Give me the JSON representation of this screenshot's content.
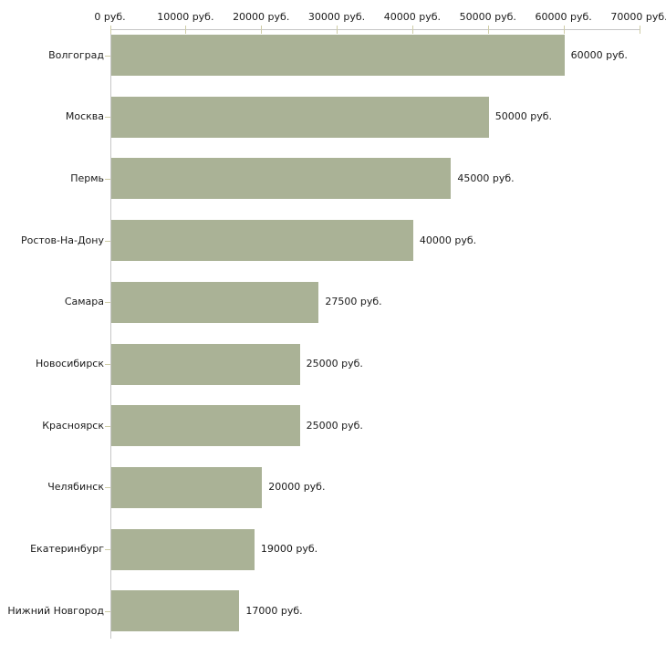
{
  "chart_data": {
    "type": "bar",
    "orientation": "horizontal",
    "title": "",
    "xlabel": "",
    "ylabel": "",
    "xlim": [
      0,
      70000
    ],
    "grid": false,
    "legend": "none",
    "unit": "руб.",
    "categories": [
      "Волгоград",
      "Москва",
      "Пермь",
      "Ростов-На-Дону",
      "Самара",
      "Новосибирск",
      "Красноярск",
      "Челябинск",
      "Екатеринбург",
      "Нижний Новгород"
    ],
    "values": [
      60000,
      50000,
      45000,
      40000,
      27500,
      25000,
      25000,
      20000,
      19000,
      17000
    ],
    "value_labels": [
      "60000 руб.",
      "50000 руб.",
      "45000 руб.",
      "40000 руб.",
      "27500 руб.",
      "25000 руб.",
      "25000 руб.",
      "20000 руб.",
      "19000 руб.",
      "17000 руб."
    ],
    "x_ticks": [
      {
        "value": 0,
        "label": "0 руб."
      },
      {
        "value": 10000,
        "label": "10000 руб."
      },
      {
        "value": 20000,
        "label": "20000 руб."
      },
      {
        "value": 30000,
        "label": "30000 руб."
      },
      {
        "value": 40000,
        "label": "40000 руб."
      },
      {
        "value": 50000,
        "label": "50000 руб."
      },
      {
        "value": 60000,
        "label": "60000 руб."
      },
      {
        "value": 70000,
        "label": "70000 руб."
      }
    ],
    "colors": {
      "bar": "#aab296",
      "axis_line": "#c6c6c6",
      "tick_mark": "#cfcda6",
      "text": "#1a1a1a",
      "background": "#ffffff"
    }
  }
}
